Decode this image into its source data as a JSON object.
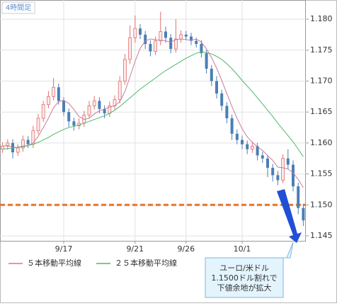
{
  "chart_data": {
    "type": "candlestick",
    "timeframe": "4時間足",
    "categories": [
      null,
      null,
      null,
      null,
      null,
      null,
      null,
      null,
      null,
      null,
      null,
      null,
      "9/17",
      null,
      null,
      null,
      null,
      null,
      null,
      null,
      null,
      null,
      null,
      null,
      null,
      null,
      "9/21",
      null,
      null,
      null,
      null,
      null,
      null,
      null,
      null,
      null,
      "9/26",
      null,
      null,
      null,
      null,
      null,
      null,
      null,
      null,
      null,
      null,
      "10/1",
      null,
      null,
      null,
      null,
      null,
      null,
      null,
      null,
      null,
      null,
      null,
      null
    ],
    "open": [
      1.159,
      1.1595,
      1.16,
      1.1585,
      1.1592,
      1.1605,
      1.1598,
      1.162,
      1.164,
      1.1662,
      1.1675,
      1.169,
      1.1668,
      1.165,
      1.1635,
      1.1628,
      1.1632,
      1.1645,
      1.166,
      1.1668,
      1.1655,
      1.1648,
      1.166,
      1.167,
      1.17,
      1.1735,
      1.177,
      1.1785,
      1.1775,
      1.176,
      1.1748,
      1.1765,
      1.178,
      1.177,
      1.1752,
      1.1768,
      1.1775,
      1.1772,
      1.1765,
      1.176,
      1.1745,
      1.172,
      1.17,
      1.168,
      1.166,
      1.164,
      1.1615,
      1.1605,
      1.1598,
      1.159,
      1.1595,
      1.158,
      1.1575,
      1.156,
      1.1548,
      1.154,
      1.1575,
      1.1565,
      1.153,
      1.1495
    ],
    "high": [
      1.1601,
      1.1606,
      1.1606,
      1.1598,
      1.1612,
      1.1611,
      1.1628,
      1.1647,
      1.1668,
      1.1684,
      1.1705,
      1.1696,
      1.1674,
      1.1656,
      1.1641,
      1.164,
      1.1652,
      1.1668,
      1.1676,
      1.1674,
      1.1661,
      1.1667,
      1.1677,
      1.1708,
      1.1744,
      1.179,
      1.1806,
      1.1792,
      1.1781,
      1.1766,
      1.1772,
      1.1812,
      1.1788,
      1.1776,
      1.18,
      1.1782,
      1.1781,
      1.1778,
      1.177,
      1.1766,
      1.175,
      1.1726,
      1.1708,
      1.1686,
      1.1666,
      1.1646,
      1.1622,
      1.1612,
      1.1604,
      1.1602,
      1.16,
      1.1586,
      1.158,
      1.1566,
      1.1555,
      1.1582,
      1.159,
      1.1572,
      1.1536,
      1.1502
    ],
    "low": [
      1.1584,
      1.1589,
      1.1575,
      1.1579,
      1.1586,
      1.1592,
      1.1592,
      1.1614,
      1.1634,
      1.1656,
      1.1669,
      1.1662,
      1.1644,
      1.1626,
      1.162,
      1.1622,
      1.1626,
      1.164,
      1.1654,
      1.1648,
      1.164,
      1.1642,
      1.1654,
      1.1664,
      1.1694,
      1.1728,
      1.1762,
      1.1768,
      1.1752,
      1.174,
      1.1742,
      1.1758,
      1.1762,
      1.1745,
      1.1746,
      1.1762,
      1.1766,
      1.1758,
      1.1754,
      1.1738,
      1.1712,
      1.1692,
      1.1672,
      1.1652,
      1.1632,
      1.1605,
      1.1598,
      1.159,
      1.1582,
      1.1584,
      1.1572,
      1.1568,
      1.1545,
      1.1538,
      1.1532,
      1.1535,
      1.1558,
      1.1522,
      1.1485,
      1.1466
    ],
    "close": [
      1.1595,
      1.16,
      1.1585,
      1.1592,
      1.1605,
      1.1598,
      1.162,
      1.164,
      1.1662,
      1.1675,
      1.169,
      1.1668,
      1.165,
      1.1635,
      1.1628,
      1.1632,
      1.1645,
      1.166,
      1.1668,
      1.1655,
      1.1648,
      1.166,
      1.167,
      1.17,
      1.1735,
      1.177,
      1.1785,
      1.1775,
      1.176,
      1.1748,
      1.1765,
      1.178,
      1.177,
      1.1752,
      1.1768,
      1.1775,
      1.1772,
      1.1765,
      1.176,
      1.1745,
      1.172,
      1.17,
      1.168,
      1.166,
      1.164,
      1.1615,
      1.1605,
      1.1598,
      1.159,
      1.1595,
      1.158,
      1.1575,
      1.156,
      1.1548,
      1.154,
      1.1575,
      1.1565,
      1.153,
      1.1495,
      1.1475
    ],
    "up_color": "#e07070",
    "down_color": "#4a7fb5",
    "series": [
      {
        "name": "５本移動平均線",
        "color": "#c87a9a",
        "values": [
          1.1595,
          1.1596,
          1.1593,
          1.1593,
          1.1595,
          1.1596,
          1.16,
          1.1611,
          1.1625,
          1.164,
          1.1657,
          1.1667,
          1.1669,
          1.1664,
          1.1654,
          1.1643,
          1.1638,
          1.164,
          1.1647,
          1.1652,
          1.1655,
          1.1658,
          1.166,
          1.1667,
          1.1683,
          1.1707,
          1.1732,
          1.1753,
          1.1765,
          1.1768,
          1.1767,
          1.1766,
          1.1765,
          1.1763,
          1.1767,
          1.1768,
          1.1767,
          1.1766,
          1.1768,
          1.1763,
          1.1752,
          1.1738,
          1.1721,
          1.1701,
          1.168,
          1.1659,
          1.164,
          1.1623,
          1.161,
          1.1601,
          1.1594,
          1.1588,
          1.158,
          1.1572,
          1.1561,
          1.156,
          1.1558,
          1.1552,
          1.1541,
          1.1528
        ]
      },
      {
        "name": "２５本移動平均線",
        "color": "#4cb86a",
        "values": [
          1.159,
          1.1591,
          1.1592,
          1.1593,
          1.1594,
          1.1596,
          1.1598,
          1.1601,
          1.1605,
          1.1609,
          1.1614,
          1.1618,
          1.1622,
          1.1625,
          1.1627,
          1.1629,
          1.1632,
          1.1635,
          1.1638,
          1.1641,
          1.1644,
          1.1648,
          1.1653,
          1.1659,
          1.1666,
          1.1673,
          1.168,
          1.1687,
          1.1693,
          1.1699,
          1.1705,
          1.1711,
          1.1717,
          1.1722,
          1.1727,
          1.1732,
          1.1737,
          1.1741,
          1.1745,
          1.1747,
          1.1746,
          1.1744,
          1.174,
          1.1735,
          1.1728,
          1.172,
          1.1711,
          1.1701,
          1.1692,
          1.1683,
          1.1673,
          1.1663,
          1.1653,
          1.1643,
          1.1632,
          1.1622,
          1.1612,
          1.1602,
          1.159,
          1.1578
        ]
      }
    ],
    "ylim": [
      1.1442,
      1.1831
    ],
    "yticks": [
      {
        "value": 1.145,
        "label": "1.145"
      },
      {
        "value": 1.15,
        "label": "1.150"
      },
      {
        "value": 1.155,
        "label": "1.155"
      },
      {
        "value": 1.16,
        "label": "1.160"
      },
      {
        "value": 1.165,
        "label": "1.165"
      },
      {
        "value": 1.17,
        "label": "1.170"
      },
      {
        "value": 1.175,
        "label": "1.175"
      },
      {
        "value": 1.18,
        "label": "1.180"
      }
    ],
    "grid": true,
    "hline": {
      "value": 1.15,
      "color": "#e8742a"
    },
    "callout": [
      "ユーロ/米ドル",
      "1.1500ドル割れで",
      "下値余地が拡大"
    ]
  }
}
